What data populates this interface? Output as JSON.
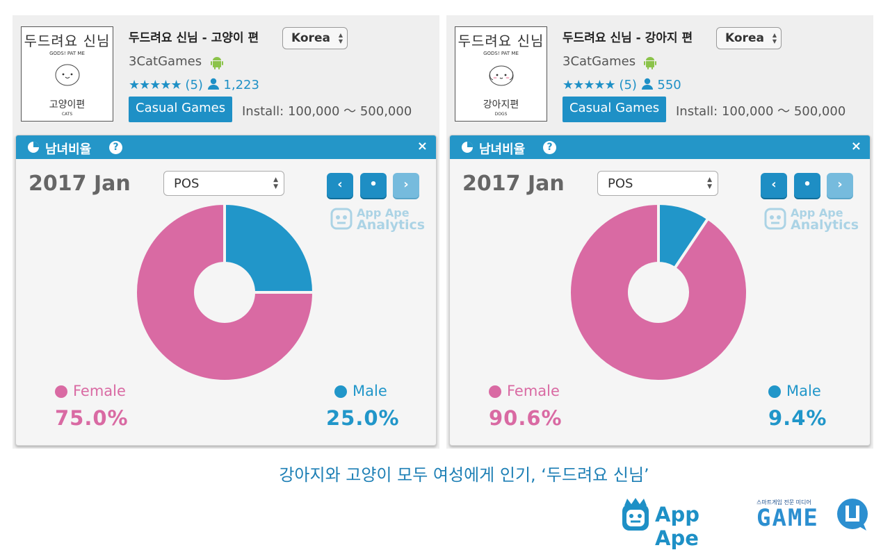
{
  "panels": [
    {
      "thumb_title": "두드려요 신님",
      "thumb_subtitle": "GODS! PAT ME",
      "thumb_bottom": "고양이편",
      "thumb_en": "CATS",
      "app_title": "두드려요 신님 - 고양이 편",
      "country": "Korea",
      "developer": "3CatGames",
      "stars": "★★★★★",
      "rating_count": "(5)",
      "users": "1,223",
      "genre": "Casual Games",
      "install": "Install: 100,000 ～ 500,000",
      "widget_title": "남녀비율",
      "period": "2017 Jan",
      "platform": "POS",
      "watermark_line1": "App Ape",
      "watermark_line2": "Analytics",
      "female_label": "Female",
      "male_label": "Male",
      "female_value": "75.0%",
      "male_value": "25.0%"
    },
    {
      "thumb_title": "두드려요 신님",
      "thumb_subtitle": "GODS! PAT ME",
      "thumb_bottom": "강아지편",
      "thumb_en": "DOGS",
      "app_title": "두드려요 신님 - 강아지 편",
      "country": "Korea",
      "developer": "3CatGames",
      "stars": "★★★★★",
      "rating_count": "(5)",
      "users": "550",
      "genre": "Casual Games",
      "install": "Install: 100,000 ～ 500,000",
      "widget_title": "남녀비율",
      "period": "2017 Jan",
      "platform": "POS",
      "watermark_line1": "App Ape",
      "watermark_line2": "Analytics",
      "female_label": "Female",
      "male_label": "Male",
      "female_value": "90.6%",
      "male_value": "9.4%"
    }
  ],
  "nav": {
    "prev": "‹",
    "current": "•",
    "next": "›",
    "help": "?",
    "close": "×"
  },
  "colors": {
    "female": "#d96aa3",
    "male": "#2196c9",
    "header": "#2496c8"
  },
  "chart_data": [
    {
      "type": "pie",
      "title": "남녀비율",
      "categories": [
        "Female",
        "Male"
      ],
      "values": [
        75.0,
        25.0
      ],
      "donut": true
    },
    {
      "type": "pie",
      "title": "남녀비율",
      "categories": [
        "Female",
        "Male"
      ],
      "values": [
        90.6,
        9.4
      ],
      "donut": true
    }
  ],
  "caption": "강아지와 고양이 모두 여성에게 인기, ‘두드려요 신님’",
  "logos": {
    "appape": "App Ape",
    "game_tagline": "스마트게임 전문 미디어",
    "game_word": "GAME"
  }
}
